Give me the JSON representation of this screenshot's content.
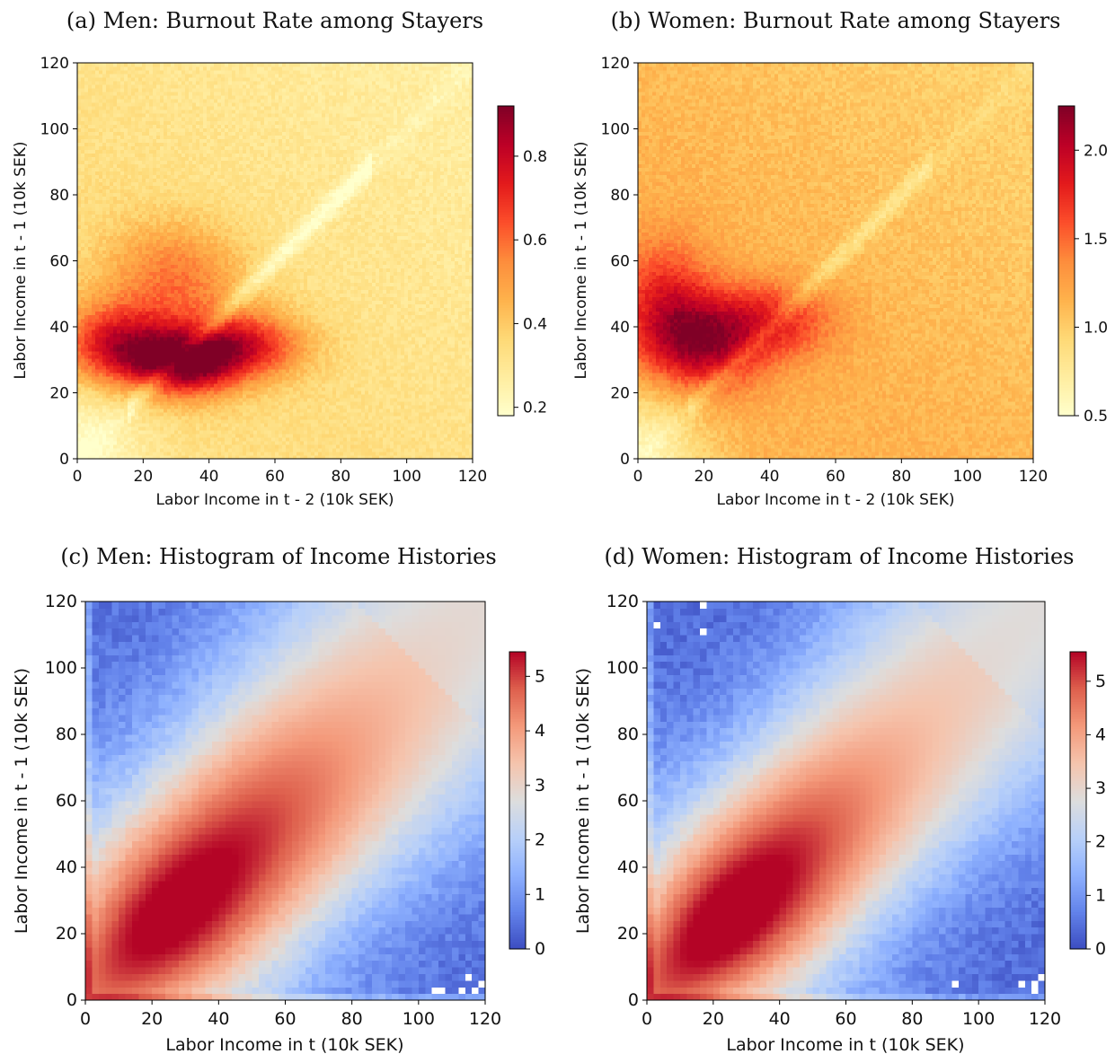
{
  "chart_data": [
    {
      "id": "a",
      "type": "heatmap",
      "title": "(a) Men: Burnout Rate among Stayers",
      "xlabel": "Labor Income in t - 2 (10k SEK)",
      "ylabel": "Labor Income in t - 1 (10k SEK)",
      "xlim": [
        0,
        120
      ],
      "ylim": [
        0,
        120
      ],
      "xticks": [
        0,
        20,
        40,
        60,
        80,
        100,
        120
      ],
      "yticks": [
        0,
        20,
        40,
        60,
        80,
        100,
        120
      ],
      "colormap": "YlOrRd",
      "colorbar": {
        "range": [
          0.18,
          0.92
        ],
        "ticks": [
          0.2,
          0.4,
          0.6,
          0.8
        ],
        "tick_labels": [
          "0.2",
          "0.4",
          "0.6",
          "0.8"
        ]
      },
      "surface": {
        "base": 0.34,
        "hotspots": [
          {
            "x": 33,
            "y": 29,
            "peak": 0.88,
            "sx": 12,
            "sy": 7
          },
          {
            "x": 12,
            "y": 34,
            "peak": 0.78,
            "sx": 12,
            "sy": 9
          },
          {
            "x": 52,
            "y": 35,
            "peak": 0.7,
            "sx": 13,
            "sy": 7
          },
          {
            "x": 30,
            "y": 55,
            "peak": 0.58,
            "sx": 15,
            "sy": 12
          }
        ],
        "diagonal_dip": 0.14,
        "corner_low": {
          "x": 0,
          "y": 0,
          "value": 0.18
        },
        "upper_right_value": 0.26
      }
    },
    {
      "id": "b",
      "type": "heatmap",
      "title": "(b) Women: Burnout Rate among Stayers",
      "xlabel": "Labor Income in t - 2 (10k SEK)",
      "ylabel": "Labor Income in t - 1 (10k SEK)",
      "xlim": [
        0,
        120
      ],
      "ylim": [
        0,
        120
      ],
      "xticks": [
        0,
        20,
        40,
        60,
        80,
        100,
        120
      ],
      "yticks": [
        0,
        20,
        40,
        60,
        80,
        100,
        120
      ],
      "colormap": "YlOrRd",
      "colorbar": {
        "range": [
          0.5,
          2.25
        ],
        "ticks": [
          0.5,
          1.0,
          1.5,
          2.0
        ],
        "tick_labels": [
          "0.5",
          "1.0",
          "1.5",
          "2.0"
        ]
      },
      "surface": {
        "base": 1.15,
        "hotspots": [
          {
            "x": 18,
            "y": 34,
            "peak": 2.05,
            "sx": 13,
            "sy": 10
          },
          {
            "x": 40,
            "y": 42,
            "peak": 1.75,
            "sx": 14,
            "sy": 8
          },
          {
            "x": 8,
            "y": 50,
            "peak": 1.7,
            "sx": 10,
            "sy": 12
          }
        ],
        "diagonal_dip": 0.25,
        "corner_low": {
          "x": 0,
          "y": 0,
          "value": 0.6
        },
        "upper_right_value": 0.95
      }
    },
    {
      "id": "c",
      "type": "heatmap",
      "title": "(c) Men: Histogram of Income Histories",
      "xlabel": "Labor Income in t (10k SEK)",
      "ylabel": "Labor Income in t - 1 (10k SEK)",
      "xlim": [
        0,
        120
      ],
      "ylim": [
        0,
        120
      ],
      "xticks": [
        0,
        20,
        40,
        60,
        80,
        100,
        120
      ],
      "yticks": [
        0,
        20,
        40,
        60,
        80,
        100,
        120
      ],
      "colormap": "coolwarm",
      "grid_bins": 60,
      "colorbar": {
        "range": [
          0,
          5.45
        ],
        "ticks": [
          0,
          1,
          2,
          3,
          4,
          5
        ],
        "tick_labels": [
          "0",
          "1",
          "2",
          "3",
          "4",
          "5"
        ]
      },
      "surface": {
        "diagonal_peak": 5.3,
        "peak_center": 40,
        "peak_spread": 30,
        "band_width": 28,
        "off_diagonal_floor": 0.4,
        "empty_cells": [
          [
            104,
            3
          ],
          [
            106,
            3
          ],
          [
            112,
            3
          ],
          [
            114,
            7
          ],
          [
            116,
            3
          ],
          [
            118,
            5
          ]
        ]
      }
    },
    {
      "id": "d",
      "type": "heatmap",
      "title": "(d) Women: Histogram of Income Histories",
      "xlabel": "Labor Income in t (10k SEK)",
      "ylabel": "Labor Income in t - 1 (10k SEK)",
      "xlim": [
        0,
        120
      ],
      "ylim": [
        0,
        120
      ],
      "xticks": [
        0,
        20,
        40,
        60,
        80,
        100,
        120
      ],
      "yticks": [
        0,
        20,
        40,
        60,
        80,
        100,
        120
      ],
      "colormap": "coolwarm",
      "grid_bins": 60,
      "colorbar": {
        "range": [
          0,
          5.55
        ],
        "ticks": [
          0,
          1,
          2,
          3,
          4,
          5
        ],
        "tick_labels": [
          "0",
          "1",
          "2",
          "3",
          "4",
          "5"
        ]
      },
      "surface": {
        "diagonal_peak": 5.4,
        "peak_center": 34,
        "peak_spread": 28,
        "band_width": 26,
        "off_diagonal_floor": 0.35,
        "empty_cells": [
          [
            2,
            113
          ],
          [
            16,
            111
          ],
          [
            17,
            119
          ],
          [
            92,
            5
          ],
          [
            112,
            5
          ],
          [
            116,
            3
          ],
          [
            116,
            5
          ],
          [
            118,
            7
          ]
        ]
      }
    }
  ]
}
